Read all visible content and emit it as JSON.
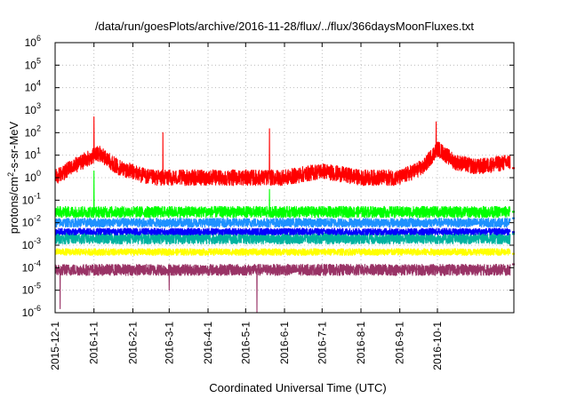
{
  "chart_data": {
    "type": "line",
    "title": "/data/run/goesPlots/archive/2016-11-28/flux/../flux/366daysMoonFluxes.txt",
    "xlabel": "Coordinated Universal Time (UTC)",
    "ylabel": {
      "prefix": "protons/cm",
      "sup": "2",
      "suffix": "-s-sr-MeV"
    },
    "x_range": [
      "2015-12-01",
      "2016-12-01"
    ],
    "x_ticks": [
      "2015-12-1",
      "2016-1-1",
      "2016-2-1",
      "2016-3-1",
      "2016-4-1",
      "2016-5-1",
      "2016-6-1",
      "2016-7-1",
      "2016-8-1",
      "2016-9-1",
      "2016-10-1"
    ],
    "y_scale": "log",
    "ylim": [
      1e-06,
      1000000.0
    ],
    "y_ticks": [
      {
        "base": "10",
        "exp": "-6"
      },
      {
        "base": "10",
        "exp": "-5"
      },
      {
        "base": "10",
        "exp": "-4"
      },
      {
        "base": "10",
        "exp": "-3"
      },
      {
        "base": "10",
        "exp": "-2"
      },
      {
        "base": "10",
        "exp": "-1"
      },
      {
        "base": "10",
        "exp": "0"
      },
      {
        "base": "10",
        "exp": "1"
      },
      {
        "base": "10",
        "exp": "2"
      },
      {
        "base": "10",
        "exp": "3"
      },
      {
        "base": "10",
        "exp": "4"
      },
      {
        "base": "10",
        "exp": "5"
      },
      {
        "base": "10",
        "exp": "6"
      }
    ],
    "grid": true,
    "legend": "none",
    "series": [
      {
        "color": "#ff0000",
        "base": 2.0,
        "noise_decades": 0.35,
        "x": [
          "2015-12-01",
          "2015-12-15",
          "2016-01-01",
          "2016-01-05",
          "2016-01-20",
          "2016-02-15",
          "2016-03-10",
          "2016-04-01",
          "2016-05-01",
          "2016-06-01",
          "2016-07-01",
          "2016-08-01",
          "2016-09-01",
          "2016-09-20",
          "2016-10-01",
          "2016-10-15",
          "2016-11-01",
          "2016-11-28"
        ],
        "y": [
          1.0,
          3.0,
          10.0,
          12.0,
          3.0,
          1.0,
          1.0,
          1.0,
          1.0,
          1.0,
          2.0,
          1.0,
          1.0,
          3.0,
          20.0,
          5.0,
          3.0,
          5.0
        ],
        "spikes": [
          [
            "2016-01-01",
            500
          ],
          [
            "2016-02-25",
            100
          ],
          [
            "2016-05-20",
            150
          ],
          [
            "2016-09-30",
            300
          ]
        ]
      },
      {
        "color": "#00ff00",
        "base": 0.02,
        "noise_decades": 0.25,
        "x": [
          "2015-12-01",
          "2016-11-28"
        ],
        "y": [
          0.03,
          0.03
        ],
        "spikes": [
          [
            "2016-01-01",
            2.0
          ],
          [
            "2016-05-20",
            0.3
          ]
        ]
      },
      {
        "color": "#1e90ff",
        "base": 0.01,
        "noise_decades": 0.2,
        "x": [
          "2015-12-01",
          "2016-11-28"
        ],
        "y": [
          0.01,
          0.01
        ],
        "spikes": []
      },
      {
        "color": "#00b3a0",
        "base": 0.002,
        "noise_decades": 0.25,
        "x": [
          "2015-12-01",
          "2016-11-28"
        ],
        "y": [
          0.002,
          0.002
        ],
        "spikes": []
      },
      {
        "color": "#0000ff",
        "base": 0.004,
        "noise_decades": 0.15,
        "x": [
          "2015-12-01",
          "2016-11-28"
        ],
        "y": [
          0.004,
          0.004
        ],
        "spikes": []
      },
      {
        "color": "#ffff00",
        "base": 0.0005,
        "noise_decades": 0.15,
        "x": [
          "2015-12-01",
          "2016-11-28"
        ],
        "y": [
          0.0005,
          0.0005
        ],
        "spikes": []
      },
      {
        "color": "#993366",
        "base": 8e-05,
        "noise_decades": 0.25,
        "x": [
          "2015-12-01",
          "2016-11-28"
        ],
        "y": [
          8e-05,
          8e-05
        ],
        "spikes": [
          [
            "2015-12-05",
            1.5e-06
          ],
          [
            "2016-03-01",
            1e-05
          ],
          [
            "2016-05-10",
            1e-06
          ]
        ]
      }
    ]
  }
}
